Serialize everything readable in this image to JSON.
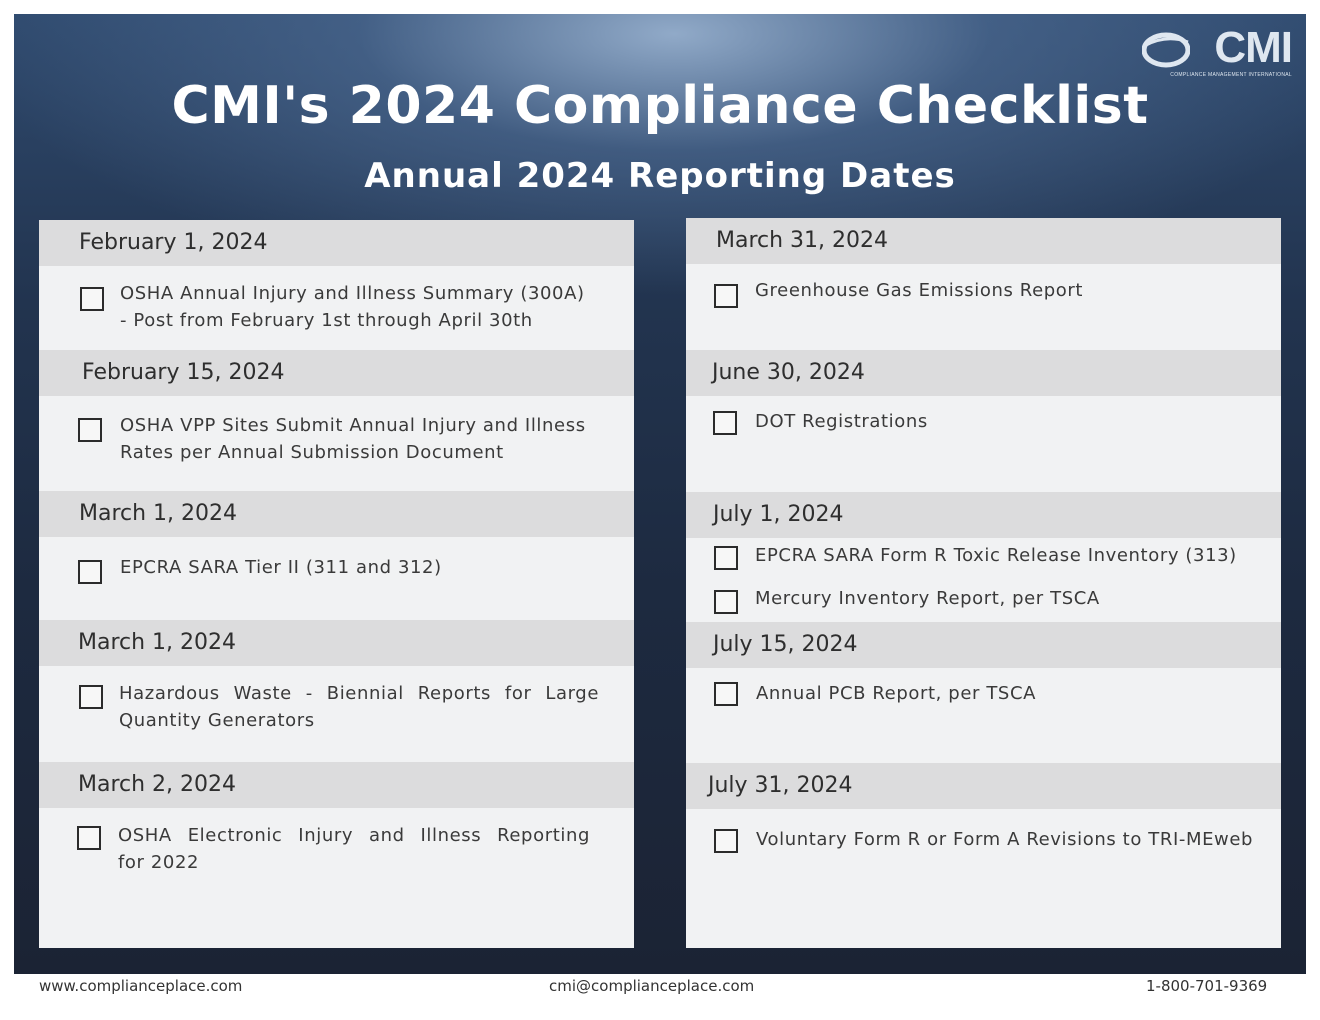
{
  "header": {
    "logo_text": "CMI",
    "logo_subtext": "COMPLIANCE MANAGEMENT INTERNATIONAL",
    "title": "CMI's 2024 Compliance Checklist",
    "subtitle": "Annual 2024 Reporting Dates"
  },
  "left_column": {
    "sections": [
      {
        "date": "February 1, 2024",
        "items": [
          "OSHA Annual Injury and Illness Summary (300A)",
          "- Post from February 1st through April 30th"
        ]
      },
      {
        "date": "February 15, 2024",
        "items": [
          "OSHA VPP Sites Submit Annual Injury and Illness",
          "Rates per Annual Submission Document"
        ]
      },
      {
        "date": "March 1, 2024",
        "items": [
          "EPCRA SARA Tier II (311 and 312)"
        ]
      },
      {
        "date": "March 1, 2024",
        "items": [
          "Hazardous Waste - Biennial Reports for Large",
          "Quantity Generators"
        ]
      },
      {
        "date": "March 2, 2024",
        "items": [
          "OSHA Electronic Injury and Illness Reporting",
          "for 2022"
        ]
      }
    ]
  },
  "right_column": {
    "sections": [
      {
        "date": "March 31, 2024",
        "items": [
          "Greenhouse Gas Emissions Report"
        ]
      },
      {
        "date": "June 30, 2024",
        "items": [
          "DOT Registrations"
        ]
      },
      {
        "date": "July 1, 2024",
        "items": [
          "EPCRA SARA Form R Toxic Release Inventory (313)",
          "Mercury Inventory Report, per TSCA"
        ]
      },
      {
        "date": "July 15, 2024",
        "items": [
          "Annual PCB Report, per TSCA"
        ]
      },
      {
        "date": "July 31, 2024",
        "items": [
          "Voluntary Form R or Form A Revisions to TRI-MEweb"
        ]
      }
    ]
  },
  "footer": {
    "website": "www.complianceplace.com",
    "email": "cmi@complianceplace.com",
    "phone": "1-800-701-9369"
  }
}
